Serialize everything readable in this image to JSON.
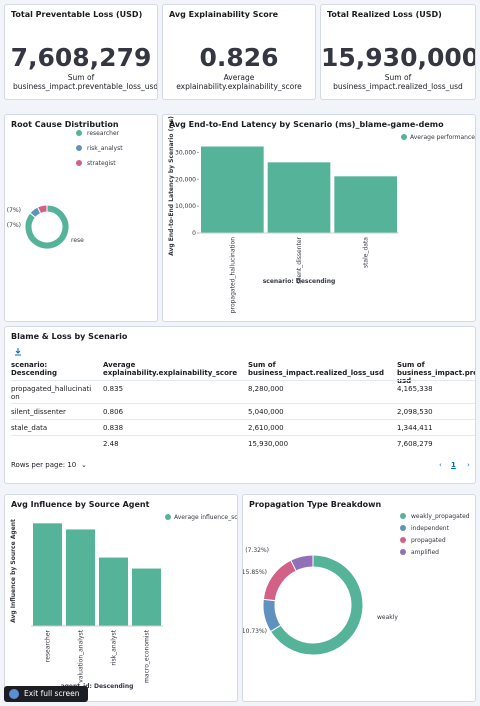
{
  "metrics": [
    {
      "title": "Total Preventable Loss (USD)",
      "value": "7,608,279",
      "caption": "Sum of business_impact.preventable_loss_usd"
    },
    {
      "title": "Avg Explainability Score",
      "value": "0.826",
      "caption": "Average explainability.explainability_score"
    },
    {
      "title": "Total Realized Loss (USD)",
      "value": "15,930,000",
      "caption": "Sum of business_impact.realized_loss_usd"
    }
  ],
  "chart_data": [
    {
      "type": "pie",
      "title": "Root Cause Distribution",
      "categories": [
        "researcher",
        "risk_analyst",
        "strategist"
      ],
      "values": [
        86,
        7,
        7
      ],
      "value_labels": [
        null,
        "(7%)",
        "(7%)"
      ],
      "slice_name_labels": [
        "rese",
        null,
        null
      ],
      "colors": [
        "#54b399",
        "#6092c0",
        "#d36086"
      ]
    },
    {
      "type": "bar",
      "title": "Avg End-to-End Latency by Scenario (ms)_blame-game-demo",
      "x_label": "scenario: Descending",
      "y_label": "Avg End-to-End Latency by Scenario (ms)",
      "categories": [
        "propagated_hallucination",
        "silent_dissenter",
        "stale_data"
      ],
      "series": [
        {
          "name": "Average performance.",
          "color": "#54b399",
          "values": [
            32200,
            26300,
            21100
          ]
        }
      ],
      "ylim": [
        0,
        35000
      ],
      "yticks": [
        0,
        {
          "value": 10000,
          "label": "10,000"
        },
        {
          "value": 20000,
          "label": "20,000"
        },
        {
          "value": 30000,
          "label": "30,000"
        }
      ],
      "grid": false
    },
    {
      "type": "bar",
      "title": "Avg Influence by Source Agent",
      "x_label": "agent_id: Descending",
      "y_label": "Avg Influence by Source Agent",
      "categories": [
        "researcher",
        "valuation_analyst",
        "risk_analyst",
        "macro_economist"
      ],
      "series": [
        {
          "name": "Average influence_sc",
          "color": "#54b399",
          "values": [
            0.42,
            0.395,
            0.28,
            0.235
          ]
        }
      ],
      "ylim": [
        0,
        0.45
      ],
      "yticks": [],
      "grid": false
    },
    {
      "type": "pie",
      "title": "Propagation Type Breakdown",
      "categories": [
        "weakly_propagated",
        "independent",
        "propagated",
        "amplified"
      ],
      "values": [
        66.1,
        10.73,
        15.85,
        7.32
      ],
      "value_labels": [
        null,
        "(10.73%)",
        "(15.85%)",
        "(7.32%)"
      ],
      "slice_name_labels": [
        "weakly",
        null,
        null,
        null
      ],
      "colors": [
        "#54b399",
        "#6092c0",
        "#d36086",
        "#9170b8"
      ]
    }
  ],
  "table": {
    "title": "Blame & Loss by Scenario",
    "headers": [
      "scenario: Descending",
      "Average explainability.explainability_score",
      "Sum of business_impact.realized_loss_usd",
      "Sum of business_impact.preventable_loss_usd"
    ],
    "rows": [
      [
        "propagated_hallucination",
        "0.835",
        "8,280,000",
        "4,165,338"
      ],
      [
        "silent_dissenter",
        "0.806",
        "5,040,000",
        "2,098,530"
      ],
      [
        "stale_data",
        "0.838",
        "2,610,000",
        "1,344,411"
      ]
    ],
    "footer": [
      "2.48",
      "15,930,000",
      "7,608,279"
    ],
    "rows_per_page": "Rows per page: 10",
    "page": "1"
  },
  "button": "Exit full screen"
}
